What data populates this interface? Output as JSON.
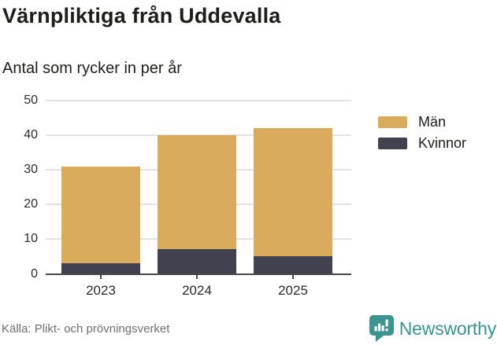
{
  "header": {
    "title": "Värnpliktiga från Uddevalla",
    "subtitle": "Antal som rycker in per år"
  },
  "chart_data": {
    "type": "bar",
    "stacked": true,
    "title": "Värnpliktiga från Uddevalla",
    "subtitle": "Antal som rycker in per år",
    "categories": [
      "2023",
      "2024",
      "2025"
    ],
    "series": [
      {
        "name": "Kvinnor",
        "values": [
          3,
          7,
          5
        ],
        "color": "#414150"
      },
      {
        "name": "Män",
        "values": [
          28,
          33,
          37
        ],
        "color": "#d9ab5c"
      }
    ],
    "totals": [
      31,
      40,
      42
    ],
    "xlabel": "",
    "ylabel": "",
    "ylim": [
      0,
      50
    ],
    "yticks": [
      0,
      10,
      20,
      30,
      40,
      50
    ],
    "grid": "horizontal",
    "legend_position": "right",
    "legend_order": [
      "Män",
      "Kvinnor"
    ]
  },
  "footer": {
    "source": "Källa: Plikt- och prövningsverket",
    "brand": "Newsworthy"
  },
  "colors": {
    "men": "#d9ab5c",
    "women": "#414150",
    "brand_teal": "#3a948f",
    "gridline": "#e3e3e3",
    "axis": "#474747",
    "source_text": "#6f6f6f"
  }
}
